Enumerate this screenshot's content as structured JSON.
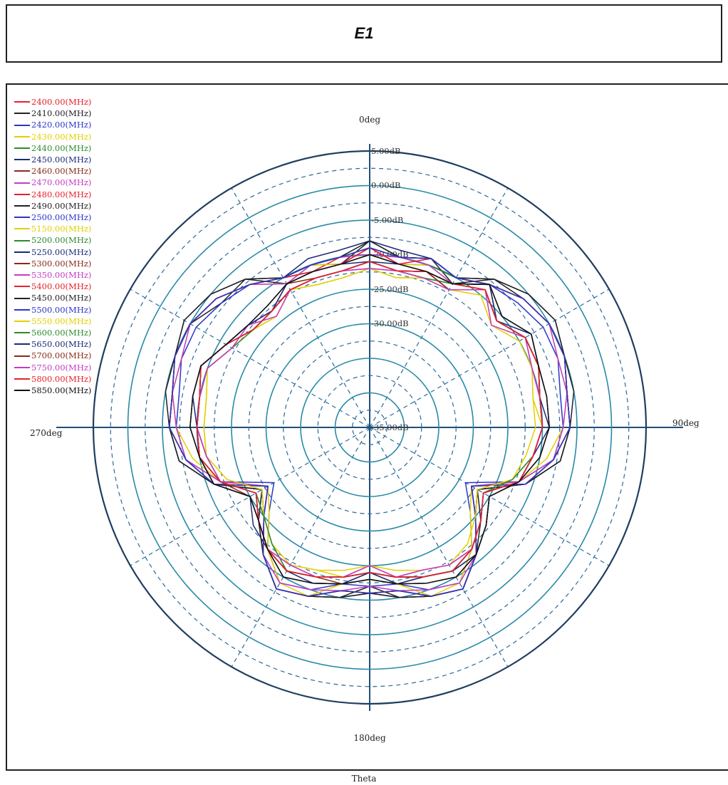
{
  "title": "E1",
  "chart_data": {
    "type": "polar-line",
    "title": "E1",
    "xlabel": "Theta",
    "angle_labels": {
      "top": "0deg",
      "right": "90deg",
      "bottom": "180deg",
      "left": "270deg"
    },
    "radial_ticks": [
      "5.00dB",
      "0.00dB",
      "-5.00dB",
      "-20.00dB",
      "-25.00dB",
      "-30.00dB",
      "-35.00dB"
    ],
    "radial_range_db": [
      -35,
      5
    ],
    "angles_deg": [
      0,
      10,
      20,
      30,
      40,
      50,
      60,
      70,
      80,
      90,
      100,
      110,
      120,
      130,
      140,
      150,
      160,
      170,
      180,
      190,
      200,
      210,
      220,
      230,
      240,
      250,
      260,
      270,
      280,
      290,
      300,
      310,
      320,
      330,
      340,
      350
    ],
    "grid": true,
    "legend_position": "top-left",
    "series": [
      {
        "name": "2400.00(MHz)",
        "color": "#e8202a",
        "values": [
          -9,
          -10,
          -9,
          -10,
          -8,
          -6,
          -5,
          -5,
          -6,
          -6,
          -8,
          -11,
          -18,
          -15,
          -11,
          -8,
          -9,
          -11,
          -11,
          -11,
          -9,
          -8,
          -11,
          -15,
          -18,
          -11,
          -8,
          -6,
          -6,
          -5,
          -5,
          -6,
          -8,
          -10,
          -11,
          -10
        ]
      },
      {
        "name": "2410.00(MHz)",
        "color": "#222222",
        "values": [
          -8,
          -10,
          -9,
          -11,
          -7,
          -6,
          -5,
          -5,
          -6,
          -6,
          -7,
          -11,
          -17,
          -15,
          -11,
          -8,
          -9,
          -10,
          -12,
          -10,
          -9,
          -8,
          -11,
          -14,
          -17,
          -11,
          -7,
          -6,
          -6,
          -5,
          -5,
          -7,
          -7,
          -11,
          -10,
          -11
        ]
      },
      {
        "name": "2420.00(MHz)",
        "color": "#2a36c8",
        "values": [
          -9,
          -11,
          -10,
          -10,
          -8,
          -7,
          -6,
          -6,
          -7,
          -7,
          -8,
          -12,
          -19,
          -16,
          -12,
          -9,
          -10,
          -12,
          -12,
          -12,
          -10,
          -9,
          -12,
          -16,
          -19,
          -12,
          -8,
          -7,
          -7,
          -6,
          -6,
          -7,
          -8,
          -10,
          -11,
          -11
        ]
      },
      {
        "name": "2430.00(MHz)",
        "color": "#e2d000",
        "values": [
          -10,
          -11,
          -10,
          -11,
          -8,
          -6,
          -5,
          -6,
          -6,
          -7,
          -9,
          -12,
          -18,
          -16,
          -12,
          -9,
          -9,
          -12,
          -13,
          -12,
          -9,
          -9,
          -12,
          -16,
          -18,
          -12,
          -9,
          -7,
          -6,
          -6,
          -5,
          -6,
          -8,
          -11,
          -10,
          -11
        ]
      },
      {
        "name": "2440.00(MHz)",
        "color": "#2e8a2e",
        "values": [
          -9,
          -10,
          -10,
          -10,
          -8,
          -6,
          -5,
          -5,
          -6,
          -6,
          -8,
          -11,
          -18,
          -15,
          -11,
          -8,
          -9,
          -11,
          -11,
          -11,
          -9,
          -8,
          -11,
          -15,
          -18,
          -11,
          -8,
          -6,
          -6,
          -5,
          -5,
          -6,
          -8,
          -10,
          -10,
          -10
        ]
      },
      {
        "name": "2450.00(MHz)",
        "color": "#1a2a7a",
        "values": [
          -8,
          -9,
          -9,
          -10,
          -7,
          -5,
          -4,
          -5,
          -6,
          -6,
          -7,
          -11,
          -17,
          -15,
          -11,
          -8,
          -9,
          -10,
          -11,
          -10,
          -9,
          -8,
          -11,
          -15,
          -17,
          -11,
          -7,
          -6,
          -6,
          -5,
          -4,
          -5,
          -7,
          -10,
          -9,
          -9
        ]
      },
      {
        "name": "2460.00(MHz)",
        "color": "#8a2a1a",
        "values": [
          -9,
          -10,
          -9,
          -10,
          -8,
          -6,
          -5,
          -5,
          -6,
          -6,
          -8,
          -11,
          -18,
          -15,
          -11,
          -8,
          -9,
          -11,
          -11,
          -11,
          -9,
          -8,
          -11,
          -15,
          -18,
          -11,
          -8,
          -6,
          -6,
          -5,
          -5,
          -6,
          -8,
          -10,
          -10,
          -10
        ]
      },
      {
        "name": "2470.00(MHz)",
        "color": "#c43cc4",
        "values": [
          -10,
          -10,
          -10,
          -11,
          -8,
          -6,
          -5,
          -6,
          -6,
          -7,
          -8,
          -12,
          -18,
          -15,
          -11,
          -9,
          -10,
          -11,
          -12,
          -11,
          -10,
          -9,
          -11,
          -15,
          -18,
          -12,
          -8,
          -7,
          -6,
          -6,
          -5,
          -6,
          -8,
          -11,
          -10,
          -10
        ]
      },
      {
        "name": "2480.00(MHz)",
        "color": "#e8202a",
        "values": [
          -9,
          -11,
          -9,
          -10,
          -8,
          -6,
          -5,
          -5,
          -6,
          -6,
          -8,
          -11,
          -18,
          -15,
          -11,
          -8,
          -9,
          -11,
          -11,
          -11,
          -9,
          -8,
          -11,
          -15,
          -18,
          -11,
          -8,
          -6,
          -6,
          -5,
          -5,
          -6,
          -8,
          -10,
          -11,
          -11
        ]
      },
      {
        "name": "2490.00(MHz)",
        "color": "#222222",
        "values": [
          -8,
          -10,
          -9,
          -10,
          -7,
          -5,
          -4,
          -5,
          -5,
          -6,
          -7,
          -11,
          -17,
          -14,
          -11,
          -8,
          -9,
          -10,
          -11,
          -10,
          -9,
          -8,
          -11,
          -14,
          -17,
          -11,
          -7,
          -6,
          -5,
          -5,
          -4,
          -5,
          -7,
          -10,
          -10,
          -10
        ]
      },
      {
        "name": "2500.00(MHz)",
        "color": "#2a36c8",
        "values": [
          -9,
          -10,
          -9,
          -10,
          -8,
          -6,
          -5,
          -5,
          -6,
          -6,
          -8,
          -11,
          -18,
          -15,
          -11,
          -8,
          -9,
          -11,
          -11,
          -11,
          -9,
          -8,
          -11,
          -15,
          -18,
          -11,
          -8,
          -6,
          -6,
          -5,
          -5,
          -6,
          -8,
          -10,
          -10,
          -10
        ]
      },
      {
        "name": "5150.00(MHz)",
        "color": "#e2d000",
        "values": [
          -12,
          -13,
          -12,
          -12,
          -9,
          -12,
          -9,
          -10,
          -11,
          -10,
          -11,
          -12,
          -16,
          -14,
          -12,
          -12,
          -13,
          -13,
          -15,
          -13,
          -13,
          -12,
          -12,
          -14,
          -16,
          -12,
          -11,
          -11,
          -11,
          -10,
          -12,
          -13,
          -14,
          -12,
          -13,
          -13
        ]
      },
      {
        "name": "5200.00(MHz)",
        "color": "#2e8a2e",
        "values": [
          -11,
          -12,
          -12,
          -11,
          -9,
          -11,
          -9,
          -9,
          -10,
          -10,
          -11,
          -13,
          -16,
          -14,
          -12,
          -11,
          -12,
          -13,
          -14,
          -13,
          -12,
          -11,
          -13,
          -15,
          -16,
          -12,
          -11,
          -10,
          -10,
          -10,
          -12,
          -13,
          -13,
          -12,
          -12,
          -12
        ]
      },
      {
        "name": "5250.00(MHz)",
        "color": "#1a2a7a",
        "values": [
          -11,
          -12,
          -11,
          -12,
          -9,
          -11,
          -9,
          -9,
          -10,
          -10,
          -11,
          -12,
          -16,
          -14,
          -12,
          -11,
          -12,
          -13,
          -14,
          -13,
          -12,
          -11,
          -12,
          -14,
          -16,
          -12,
          -10,
          -10,
          -10,
          -9,
          -11,
          -13,
          -13,
          -12,
          -12,
          -12
        ]
      },
      {
        "name": "5300.00(MHz)",
        "color": "#8a2a1a",
        "values": [
          -11,
          -12,
          -11,
          -11,
          -8,
          -11,
          -9,
          -9,
          -10,
          -10,
          -11,
          -12,
          -15,
          -13,
          -11,
          -11,
          -12,
          -12,
          -14,
          -12,
          -12,
          -11,
          -12,
          -14,
          -15,
          -12,
          -10,
          -10,
          -10,
          -9,
          -11,
          -12,
          -13,
          -11,
          -12,
          -12
        ]
      },
      {
        "name": "5350.00(MHz)",
        "color": "#c43cc4",
        "values": [
          -12,
          -12,
          -12,
          -12,
          -9,
          -11,
          -9,
          -10,
          -10,
          -10,
          -11,
          -12,
          -16,
          -14,
          -12,
          -12,
          -13,
          -13,
          -15,
          -13,
          -12,
          -12,
          -12,
          -14,
          -16,
          -12,
          -11,
          -10,
          -10,
          -10,
          -12,
          -12,
          -13,
          -12,
          -12,
          -12
        ]
      },
      {
        "name": "5400.00(MHz)",
        "color": "#e8202a",
        "values": [
          -11,
          -12,
          -11,
          -12,
          -9,
          -11,
          -9,
          -9,
          -10,
          -10,
          -11,
          -12,
          -16,
          -14,
          -12,
          -11,
          -12,
          -13,
          -14,
          -13,
          -12,
          -11,
          -12,
          -14,
          -16,
          -12,
          -10,
          -10,
          -10,
          -9,
          -11,
          -13,
          -13,
          -12,
          -12,
          -12
        ]
      },
      {
        "name": "5450.00(MHz)",
        "color": "#222222",
        "values": [
          -10,
          -11,
          -11,
          -11,
          -8,
          -10,
          -8,
          -9,
          -9,
          -9,
          -10,
          -12,
          -15,
          -13,
          -11,
          -10,
          -11,
          -12,
          -13,
          -12,
          -11,
          -10,
          -12,
          -14,
          -15,
          -11,
          -10,
          -9,
          -9,
          -9,
          -11,
          -12,
          -12,
          -11,
          -11,
          -11
        ]
      },
      {
        "name": "5500.00(MHz)",
        "color": "#2a36c8",
        "values": [
          -11,
          -12,
          -11,
          -12,
          -9,
          -11,
          -9,
          -9,
          -10,
          -10,
          -11,
          -12,
          -16,
          -14,
          -12,
          -11,
          -12,
          -13,
          -14,
          -13,
          -12,
          -11,
          -12,
          -14,
          -16,
          -12,
          -10,
          -10,
          -10,
          -9,
          -11,
          -13,
          -13,
          -12,
          -12,
          -12
        ]
      },
      {
        "name": "5550.00(MHz)",
        "color": "#e2d000",
        "values": [
          -12,
          -13,
          -12,
          -12,
          -10,
          -12,
          -10,
          -10,
          -11,
          -11,
          -12,
          -13,
          -17,
          -15,
          -13,
          -12,
          -13,
          -14,
          -15,
          -14,
          -13,
          -12,
          -13,
          -15,
          -17,
          -13,
          -11,
          -11,
          -11,
          -10,
          -12,
          -13,
          -14,
          -12,
          -13,
          -13
        ]
      },
      {
        "name": "5600.00(MHz)",
        "color": "#2e8a2e",
        "values": [
          -11,
          -12,
          -12,
          -11,
          -9,
          -11,
          -9,
          -9,
          -10,
          -10,
          -11,
          -13,
          -16,
          -14,
          -12,
          -11,
          -12,
          -13,
          -14,
          -13,
          -12,
          -11,
          -13,
          -15,
          -16,
          -12,
          -11,
          -10,
          -10,
          -10,
          -12,
          -13,
          -13,
          -12,
          -12,
          -12
        ]
      },
      {
        "name": "5650.00(MHz)",
        "color": "#1a2a7a",
        "values": [
          -11,
          -11,
          -11,
          -11,
          -8,
          -11,
          -8,
          -9,
          -10,
          -9,
          -11,
          -12,
          -15,
          -13,
          -11,
          -11,
          -12,
          -12,
          -14,
          -12,
          -11,
          -11,
          -12,
          -13,
          -15,
          -11,
          -10,
          -10,
          -9,
          -9,
          -11,
          -12,
          -13,
          -11,
          -11,
          -11
        ]
      },
      {
        "name": "5700.00(MHz)",
        "color": "#8a2a1a",
        "values": [
          -11,
          -12,
          -11,
          -12,
          -9,
          -11,
          -9,
          -9,
          -10,
          -10,
          -11,
          -12,
          -16,
          -14,
          -12,
          -11,
          -12,
          -13,
          -14,
          -13,
          -12,
          -11,
          -12,
          -14,
          -16,
          -12,
          -10,
          -10,
          -10,
          -9,
          -11,
          -13,
          -13,
          -12,
          -12,
          -12
        ]
      },
      {
        "name": "5750.00(MHz)",
        "color": "#c43cc4",
        "values": [
          -12,
          -12,
          -12,
          -12,
          -9,
          -12,
          -9,
          -10,
          -10,
          -10,
          -11,
          -12,
          -16,
          -14,
          -12,
          -12,
          -13,
          -13,
          -15,
          -13,
          -12,
          -12,
          -12,
          -14,
          -16,
          -12,
          -11,
          -10,
          -10,
          -10,
          -12,
          -12,
          -14,
          -12,
          -12,
          -12
        ]
      },
      {
        "name": "5800.00(MHz)",
        "color": "#e8202a",
        "values": [
          -11,
          -12,
          -11,
          -11,
          -9,
          -11,
          -9,
          -9,
          -10,
          -10,
          -11,
          -12,
          -16,
          -14,
          -12,
          -11,
          -12,
          -13,
          -14,
          -13,
          -12,
          -11,
          -12,
          -14,
          -16,
          -12,
          -10,
          -10,
          -10,
          -9,
          -11,
          -13,
          -13,
          -12,
          -12,
          -12
        ]
      },
      {
        "name": "5850.00(MHz)",
        "color": "#111111",
        "values": [
          -10,
          -11,
          -11,
          -11,
          -8,
          -10,
          -8,
          -9,
          -9,
          -9,
          -10,
          -12,
          -15,
          -13,
          -11,
          -10,
          -11,
          -12,
          -13,
          -12,
          -11,
          -10,
          -12,
          -14,
          -15,
          -11,
          -10,
          -9,
          -9,
          -9,
          -11,
          -12,
          -12,
          -11,
          -11,
          -11
        ]
      }
    ]
  }
}
